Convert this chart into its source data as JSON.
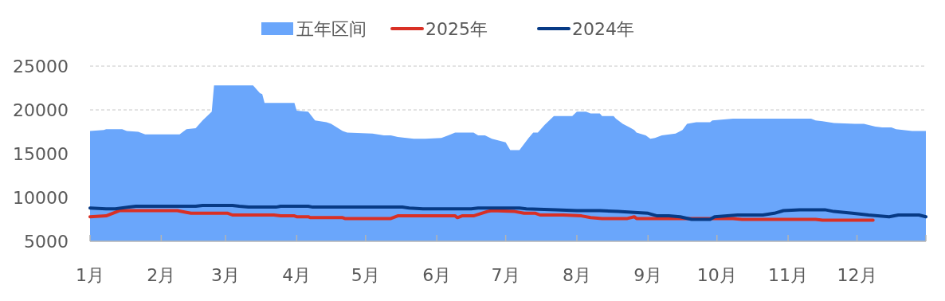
{
  "chart_data": {
    "type": "line",
    "legend": "top",
    "grid": "y",
    "xlim": [
      "--01-01",
      "--12-31"
    ],
    "xticks": [
      {
        "value": "--01-01",
        "label": "1月"
      },
      {
        "value": "--02-01",
        "label": "2月"
      },
      {
        "value": "--03-01",
        "label": "3月"
      },
      {
        "value": "--04-01",
        "label": "4月"
      },
      {
        "value": "--05-01",
        "label": "5月"
      },
      {
        "value": "--06-01",
        "label": "6月"
      },
      {
        "value": "--07-01",
        "label": "7月"
      },
      {
        "value": "--08-01",
        "label": "8月"
      },
      {
        "value": "--09-01",
        "label": "9月"
      },
      {
        "value": "--10-01",
        "label": "10月"
      },
      {
        "value": "--11-01",
        "label": "11月"
      },
      {
        "value": "--12-01",
        "label": "12月"
      }
    ],
    "ylim": [
      5000,
      25000
    ],
    "yticks": [
      5000,
      10000,
      15000,
      20000,
      25000
    ],
    "series": [
      {
        "name": "五年区间",
        "type": "area",
        "color": "#6aa6fb",
        "x": [
          "--01-01",
          "--01-07",
          "--01-08",
          "--01-15",
          "--01-17",
          "--01-22",
          "--01-25",
          "--02-09",
          "--02-12",
          "--02-16",
          "--02-19",
          "--02-23",
          "--02-24",
          "--03-13",
          "--03-16",
          "--03-17",
          "--03-18",
          "--03-31",
          "--04-01",
          "--04-06",
          "--04-09",
          "--04-14",
          "--04-16",
          "--04-21",
          "--04-23",
          "--05-04",
          "--05-09",
          "--05-12",
          "--05-15",
          "--05-22",
          "--05-27",
          "--06-03",
          "--06-06",
          "--06-09",
          "--06-17",
          "--06-19",
          "--06-22",
          "--06-25",
          "--06-28",
          "--07-01",
          "--07-03",
          "--07-07",
          "--07-11",
          "--07-13",
          "--07-15",
          "--07-18",
          "--07-20",
          "--07-22",
          "--07-30",
          "--08-01",
          "--08-05",
          "--08-07",
          "--08-11",
          "--08-12",
          "--08-17",
          "--08-18",
          "--08-21",
          "--08-24",
          "--08-26",
          "--08-27",
          "--08-31",
          "--09-02",
          "--09-04",
          "--09-07",
          "--09-13",
          "--09-16",
          "--09-18",
          "--09-22",
          "--09-28",
          "--09-29",
          "--10-08",
          "--11-11",
          "--11-13",
          "--11-16",
          "--11-21",
          "--11-30",
          "--12-04",
          "--12-09",
          "--12-12",
          "--12-16",
          "--12-18",
          "--12-25",
          "--12-31"
        ],
        "values": [
          17600,
          17700,
          17800,
          17800,
          17600,
          17500,
          17200,
          17200,
          17800,
          17900,
          18800,
          19800,
          22800,
          22800,
          21900,
          21800,
          20800,
          20800,
          19900,
          19800,
          18800,
          18600,
          18400,
          17600,
          17400,
          17300,
          17100,
          17100,
          16900,
          16700,
          16700,
          16800,
          17100,
          17400,
          17400,
          17100,
          17100,
          16700,
          16500,
          16300,
          15400,
          15400,
          16800,
          17400,
          17400,
          18300,
          18800,
          19300,
          19300,
          19800,
          19800,
          19600,
          19600,
          19300,
          19300,
          19000,
          18400,
          18000,
          17700,
          17400,
          17100,
          16700,
          16800,
          17100,
          17300,
          17700,
          18400,
          18600,
          18600,
          18800,
          19000,
          19000,
          18800,
          18700,
          18500,
          18400,
          18400,
          18100,
          18000,
          18000,
          17800,
          17600,
          17600
        ]
      },
      {
        "name": "2025年",
        "color": "#d93025",
        "x": [
          "--01-01",
          "--01-08",
          "--01-12",
          "--01-14",
          "--02-08",
          "--02-12",
          "--02-14",
          "--03-02",
          "--03-04",
          "--03-22",
          "--03-25",
          "--03-31",
          "--04-01",
          "--04-06",
          "--04-07",
          "--04-21",
          "--04-22",
          "--05-12",
          "--05-15",
          "--06-09",
          "--06-10",
          "--06-12",
          "--06-17",
          "--06-23",
          "--06-25",
          "--07-05",
          "--07-09",
          "--07-14",
          "--07-16",
          "--07-26",
          "--08-03",
          "--08-07",
          "--08-12",
          "--08-23",
          "--08-26",
          "--08-27",
          "--09-17",
          "--10-08",
          "--10-12",
          "--11-13",
          "--11-16",
          "--12-08"
        ],
        "values": [
          7800,
          7900,
          8300,
          8500,
          8500,
          8300,
          8200,
          8200,
          8000,
          8000,
          7900,
          7900,
          7800,
          7800,
          7700,
          7700,
          7600,
          7600,
          7900,
          7900,
          7700,
          7900,
          7900,
          8400,
          8500,
          8400,
          8200,
          8200,
          8000,
          8000,
          7900,
          7700,
          7600,
          7600,
          7800,
          7600,
          7600,
          7600,
          7500,
          7500,
          7400,
          7400
        ]
      },
      {
        "name": "2024年",
        "color": "#073a85",
        "x": [
          "--01-01",
          "--01-08",
          "--01-12",
          "--01-18",
          "--01-21",
          "--02-16",
          "--02-19",
          "--03-04",
          "--03-07",
          "--03-11",
          "--03-23",
          "--03-25",
          "--04-06",
          "--04-08",
          "--05-17",
          "--05-20",
          "--05-26",
          "--06-16",
          "--06-19",
          "--07-07",
          "--07-10",
          "--07-23",
          "--08-01",
          "--08-11",
          "--08-19",
          "--08-26",
          "--09-01",
          "--09-05",
          "--09-10",
          "--09-15",
          "--09-20",
          "--09-28",
          "--09-30",
          "--10-10",
          "--10-21",
          "--10-26",
          "--10-30",
          "--11-06",
          "--11-17",
          "--11-21",
          "--11-29",
          "--12-06",
          "--12-15",
          "--12-19",
          "--12-23",
          "--12-28",
          "--12-31"
        ],
        "values": [
          8800,
          8700,
          8700,
          8900,
          9000,
          9000,
          9100,
          9100,
          9000,
          8900,
          8900,
          9000,
          9000,
          8900,
          8900,
          8800,
          8700,
          8700,
          8800,
          8800,
          8700,
          8600,
          8500,
          8500,
          8400,
          8300,
          8200,
          7900,
          7900,
          7800,
          7500,
          7500,
          7800,
          8000,
          8000,
          8200,
          8500,
          8600,
          8600,
          8400,
          8200,
          8000,
          7800,
          8000,
          8000,
          8000,
          7800
        ]
      }
    ]
  }
}
